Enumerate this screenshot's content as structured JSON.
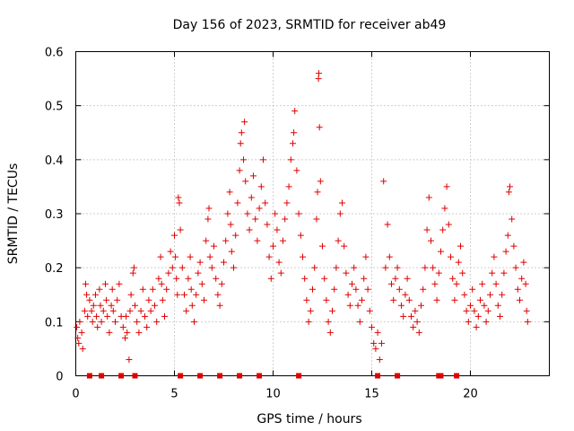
{
  "chart_data": {
    "type": "scatter",
    "title": "Day 156 of 2023, SRMTID for receiver ab49",
    "xlabel": "GPS time / hours",
    "ylabel": "SRMTID / TECUs",
    "xlim": [
      0,
      24
    ],
    "ylim": [
      0,
      0.6
    ],
    "xticks": [
      0,
      5,
      10,
      15,
      20
    ],
    "xtick_labels": [
      "0",
      "5",
      "10",
      "15",
      "20"
    ],
    "yticks": [
      0,
      0.1,
      0.2,
      0.3,
      0.4,
      0.5,
      0.6
    ],
    "ytick_labels": [
      "0",
      "0.1",
      "0.2",
      "0.3",
      "0.4",
      "0.5",
      "0.6"
    ],
    "grid": true,
    "marker": "plus",
    "color": "#e00000",
    "series": [
      {
        "name": "SRMTID",
        "points": [
          [
            0.05,
            0.09
          ],
          [
            0.1,
            0.07
          ],
          [
            0.15,
            0.06
          ],
          [
            0.2,
            0.1
          ],
          [
            0.3,
            0.08
          ],
          [
            0.35,
            0.05
          ],
          [
            0.45,
            0.12
          ],
          [
            0.5,
            0.17
          ],
          [
            0.55,
            0.15
          ],
          [
            0.6,
            0.11
          ],
          [
            0.7,
            0.14
          ],
          [
            0.8,
            0.12
          ],
          [
            0.85,
            0.1
          ],
          [
            0.9,
            0.13
          ],
          [
            1.0,
            0.15
          ],
          [
            1.05,
            0.11
          ],
          [
            1.1,
            0.09
          ],
          [
            1.2,
            0.16
          ],
          [
            1.25,
            0.13
          ],
          [
            1.3,
            0.1
          ],
          [
            1.4,
            0.12
          ],
          [
            1.5,
            0.17
          ],
          [
            1.55,
            0.14
          ],
          [
            1.6,
            0.11
          ],
          [
            1.7,
            0.08
          ],
          [
            1.8,
            0.13
          ],
          [
            1.85,
            0.16
          ],
          [
            1.9,
            0.12
          ],
          [
            2.0,
            0.1
          ],
          [
            2.1,
            0.14
          ],
          [
            2.2,
            0.17
          ],
          [
            2.3,
            0.11
          ],
          [
            2.4,
            0.09
          ],
          [
            2.5,
            0.07
          ],
          [
            2.55,
            0.11
          ],
          [
            2.6,
            0.08
          ],
          [
            2.7,
            0.03
          ],
          [
            2.75,
            0.12
          ],
          [
            2.8,
            0.15
          ],
          [
            2.9,
            0.19
          ],
          [
            2.95,
            0.2
          ],
          [
            3.0,
            0.13
          ],
          [
            3.1,
            0.1
          ],
          [
            3.2,
            0.08
          ],
          [
            3.3,
            0.12
          ],
          [
            3.4,
            0.16
          ],
          [
            3.5,
            0.11
          ],
          [
            3.6,
            0.09
          ],
          [
            3.7,
            0.14
          ],
          [
            3.8,
            0.12
          ],
          [
            3.9,
            0.16
          ],
          [
            4.0,
            0.13
          ],
          [
            4.1,
            0.1
          ],
          [
            4.2,
            0.18
          ],
          [
            4.3,
            0.22
          ],
          [
            4.35,
            0.17
          ],
          [
            4.4,
            0.14
          ],
          [
            4.5,
            0.11
          ],
          [
            4.6,
            0.16
          ],
          [
            4.7,
            0.19
          ],
          [
            4.8,
            0.23
          ],
          [
            4.9,
            0.2
          ],
          [
            5.0,
            0.26
          ],
          [
            5.05,
            0.22
          ],
          [
            5.1,
            0.18
          ],
          [
            5.15,
            0.15
          ],
          [
            5.2,
            0.33
          ],
          [
            5.25,
            0.32
          ],
          [
            5.3,
            0.27
          ],
          [
            5.4,
            0.2
          ],
          [
            5.5,
            0.15
          ],
          [
            5.6,
            0.12
          ],
          [
            5.7,
            0.18
          ],
          [
            5.8,
            0.22
          ],
          [
            5.85,
            0.16
          ],
          [
            5.9,
            0.13
          ],
          [
            6.0,
            0.1
          ],
          [
            6.1,
            0.15
          ],
          [
            6.2,
            0.19
          ],
          [
            6.3,
            0.21
          ],
          [
            6.4,
            0.17
          ],
          [
            6.5,
            0.14
          ],
          [
            6.6,
            0.25
          ],
          [
            6.7,
            0.29
          ],
          [
            6.75,
            0.31
          ],
          [
            6.8,
            0.22
          ],
          [
            6.9,
            0.2
          ],
          [
            7.0,
            0.24
          ],
          [
            7.1,
            0.18
          ],
          [
            7.2,
            0.15
          ],
          [
            7.3,
            0.13
          ],
          [
            7.4,
            0.17
          ],
          [
            7.5,
            0.21
          ],
          [
            7.6,
            0.25
          ],
          [
            7.7,
            0.3
          ],
          [
            7.8,
            0.34
          ],
          [
            7.85,
            0.28
          ],
          [
            7.9,
            0.23
          ],
          [
            8.0,
            0.2
          ],
          [
            8.1,
            0.26
          ],
          [
            8.2,
            0.32
          ],
          [
            8.3,
            0.38
          ],
          [
            8.35,
            0.43
          ],
          [
            8.4,
            0.45
          ],
          [
            8.5,
            0.4
          ],
          [
            8.55,
            0.47
          ],
          [
            8.6,
            0.36
          ],
          [
            8.7,
            0.3
          ],
          [
            8.8,
            0.27
          ],
          [
            8.9,
            0.33
          ],
          [
            9.0,
            0.37
          ],
          [
            9.1,
            0.29
          ],
          [
            9.2,
            0.25
          ],
          [
            9.3,
            0.31
          ],
          [
            9.4,
            0.35
          ],
          [
            9.5,
            0.4
          ],
          [
            9.6,
            0.32
          ],
          [
            9.7,
            0.28
          ],
          [
            9.8,
            0.22
          ],
          [
            9.9,
            0.18
          ],
          [
            10.0,
            0.24
          ],
          [
            10.1,
            0.3
          ],
          [
            10.2,
            0.27
          ],
          [
            10.3,
            0.21
          ],
          [
            10.4,
            0.19
          ],
          [
            10.5,
            0.25
          ],
          [
            10.6,
            0.29
          ],
          [
            10.7,
            0.32
          ],
          [
            10.8,
            0.35
          ],
          [
            10.9,
            0.4
          ],
          [
            11.0,
            0.43
          ],
          [
            11.05,
            0.45
          ],
          [
            11.1,
            0.49
          ],
          [
            11.2,
            0.38
          ],
          [
            11.3,
            0.3
          ],
          [
            11.4,
            0.26
          ],
          [
            11.5,
            0.22
          ],
          [
            11.6,
            0.18
          ],
          [
            11.7,
            0.14
          ],
          [
            11.8,
            0.1
          ],
          [
            11.9,
            0.12
          ],
          [
            12.0,
            0.16
          ],
          [
            12.1,
            0.2
          ],
          [
            12.2,
            0.29
          ],
          [
            12.25,
            0.34
          ],
          [
            12.3,
            0.55
          ],
          [
            12.32,
            0.56
          ],
          [
            12.35,
            0.46
          ],
          [
            12.4,
            0.36
          ],
          [
            12.5,
            0.24
          ],
          [
            12.6,
            0.18
          ],
          [
            12.7,
            0.14
          ],
          [
            12.8,
            0.1
          ],
          [
            12.9,
            0.08
          ],
          [
            13.0,
            0.12
          ],
          [
            13.1,
            0.16
          ],
          [
            13.2,
            0.2
          ],
          [
            13.3,
            0.25
          ],
          [
            13.4,
            0.3
          ],
          [
            13.5,
            0.32
          ],
          [
            13.6,
            0.24
          ],
          [
            13.7,
            0.19
          ],
          [
            13.8,
            0.15
          ],
          [
            13.9,
            0.13
          ],
          [
            14.0,
            0.17
          ],
          [
            14.1,
            0.2
          ],
          [
            14.2,
            0.16
          ],
          [
            14.3,
            0.13
          ],
          [
            14.4,
            0.1
          ],
          [
            14.5,
            0.14
          ],
          [
            14.6,
            0.18
          ],
          [
            14.7,
            0.22
          ],
          [
            14.8,
            0.16
          ],
          [
            14.9,
            0.12
          ],
          [
            15.0,
            0.09
          ],
          [
            15.1,
            0.06
          ],
          [
            15.2,
            0.05
          ],
          [
            15.3,
            0.08
          ],
          [
            15.4,
            0.03
          ],
          [
            15.5,
            0.06
          ],
          [
            15.6,
            0.36
          ],
          [
            15.7,
            0.2
          ],
          [
            15.8,
            0.28
          ],
          [
            15.9,
            0.22
          ],
          [
            16.0,
            0.17
          ],
          [
            16.1,
            0.14
          ],
          [
            16.2,
            0.18
          ],
          [
            16.3,
            0.2
          ],
          [
            16.4,
            0.16
          ],
          [
            16.5,
            0.13
          ],
          [
            16.6,
            0.11
          ],
          [
            16.7,
            0.15
          ],
          [
            16.8,
            0.18
          ],
          [
            16.9,
            0.14
          ],
          [
            17.0,
            0.11
          ],
          [
            17.1,
            0.09
          ],
          [
            17.2,
            0.12
          ],
          [
            17.3,
            0.1
          ],
          [
            17.4,
            0.08
          ],
          [
            17.5,
            0.13
          ],
          [
            17.6,
            0.16
          ],
          [
            17.7,
            0.2
          ],
          [
            17.8,
            0.27
          ],
          [
            17.9,
            0.33
          ],
          [
            18.0,
            0.25
          ],
          [
            18.1,
            0.2
          ],
          [
            18.2,
            0.17
          ],
          [
            18.3,
            0.14
          ],
          [
            18.4,
            0.19
          ],
          [
            18.5,
            0.23
          ],
          [
            18.6,
            0.27
          ],
          [
            18.7,
            0.31
          ],
          [
            18.8,
            0.35
          ],
          [
            18.9,
            0.28
          ],
          [
            19.0,
            0.22
          ],
          [
            19.1,
            0.18
          ],
          [
            19.2,
            0.14
          ],
          [
            19.3,
            0.17
          ],
          [
            19.4,
            0.21
          ],
          [
            19.5,
            0.24
          ],
          [
            19.6,
            0.19
          ],
          [
            19.7,
            0.15
          ],
          [
            19.8,
            0.12
          ],
          [
            19.9,
            0.1
          ],
          [
            20.0,
            0.13
          ],
          [
            20.1,
            0.16
          ],
          [
            20.2,
            0.12
          ],
          [
            20.3,
            0.09
          ],
          [
            20.4,
            0.11
          ],
          [
            20.5,
            0.14
          ],
          [
            20.6,
            0.17
          ],
          [
            20.7,
            0.13
          ],
          [
            20.8,
            0.1
          ],
          [
            20.9,
            0.12
          ],
          [
            21.0,
            0.15
          ],
          [
            21.1,
            0.19
          ],
          [
            21.2,
            0.22
          ],
          [
            21.3,
            0.17
          ],
          [
            21.4,
            0.13
          ],
          [
            21.5,
            0.11
          ],
          [
            21.6,
            0.15
          ],
          [
            21.7,
            0.19
          ],
          [
            21.8,
            0.23
          ],
          [
            21.9,
            0.26
          ],
          [
            21.95,
            0.34
          ],
          [
            22.0,
            0.35
          ],
          [
            22.1,
            0.29
          ],
          [
            22.2,
            0.24
          ],
          [
            22.3,
            0.2
          ],
          [
            22.4,
            0.16
          ],
          [
            22.5,
            0.14
          ],
          [
            22.6,
            0.18
          ],
          [
            22.7,
            0.21
          ],
          [
            22.8,
            0.17
          ],
          [
            22.85,
            0.12
          ],
          [
            22.9,
            0.1
          ]
        ]
      }
    ],
    "baseline_markers": [
      0.7,
      1.3,
      2.3,
      3.0,
      5.3,
      6.3,
      7.3,
      8.3,
      9.3,
      11.3,
      15.3,
      16.3,
      18.4,
      18.5,
      19.3
    ]
  }
}
